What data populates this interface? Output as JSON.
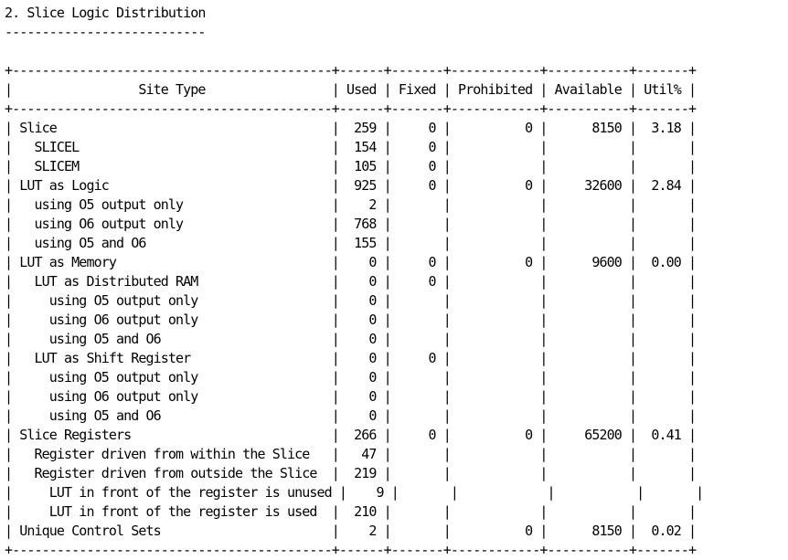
{
  "report": {
    "section_title": "2. Slice Logic Distribution",
    "title_underline": "---------------------------",
    "border_line": "+-------------------------------------------+------+-------+------------+-----------+-------+",
    "header_line": "|                 Site Type                 | Used | Fixed | Prohibited | Available | Util% |",
    "rows": [
      "| Slice                                     |  259 |     0 |          0 |      8150 |  3.18 |",
      "|   SLICEL                                  |  154 |     0 |            |           |       |",
      "|   SLICEM                                  |  105 |     0 |            |           |       |",
      "| LUT as Logic                              |  925 |     0 |          0 |     32600 |  2.84 |",
      "|   using O5 output only                    |    2 |       |            |           |       |",
      "|   using O6 output only                    |  768 |       |            |           |       |",
      "|   using O5 and O6                         |  155 |       |            |           |       |",
      "| LUT as Memory                             |    0 |     0 |          0 |      9600 |  0.00 |",
      "|   LUT as Distributed RAM                  |    0 |     0 |            |           |       |",
      "|     using O5 output only                  |    0 |       |            |           |       |",
      "|     using O6 output only                  |    0 |       |            |           |       |",
      "|     using O5 and O6                       |    0 |       |            |           |       |",
      "|   LUT as Shift Register                   |    0 |     0 |            |           |       |",
      "|     using O5 output only                  |    0 |       |            |           |       |",
      "|     using O6 output only                  |    0 |       |            |           |       |",
      "|     using O5 and O6                       |    0 |       |            |           |       |",
      "| Slice Registers                           |  266 |     0 |          0 |     65200 |  0.41 |",
      "|   Register driven from within the Slice   |   47 |       |            |           |       |",
      "|   Register driven from outside the Slice  |  219 |       |            |           |       |",
      "|     LUT in front of the register is unused |    9 |       |            |           |       |",
      "|     LUT in front of the register is used  |  210 |       |            |           |       |",
      "| Unique Control Sets                       |    2 |       |          0 |      8150 |  0.02 |"
    ]
  }
}
